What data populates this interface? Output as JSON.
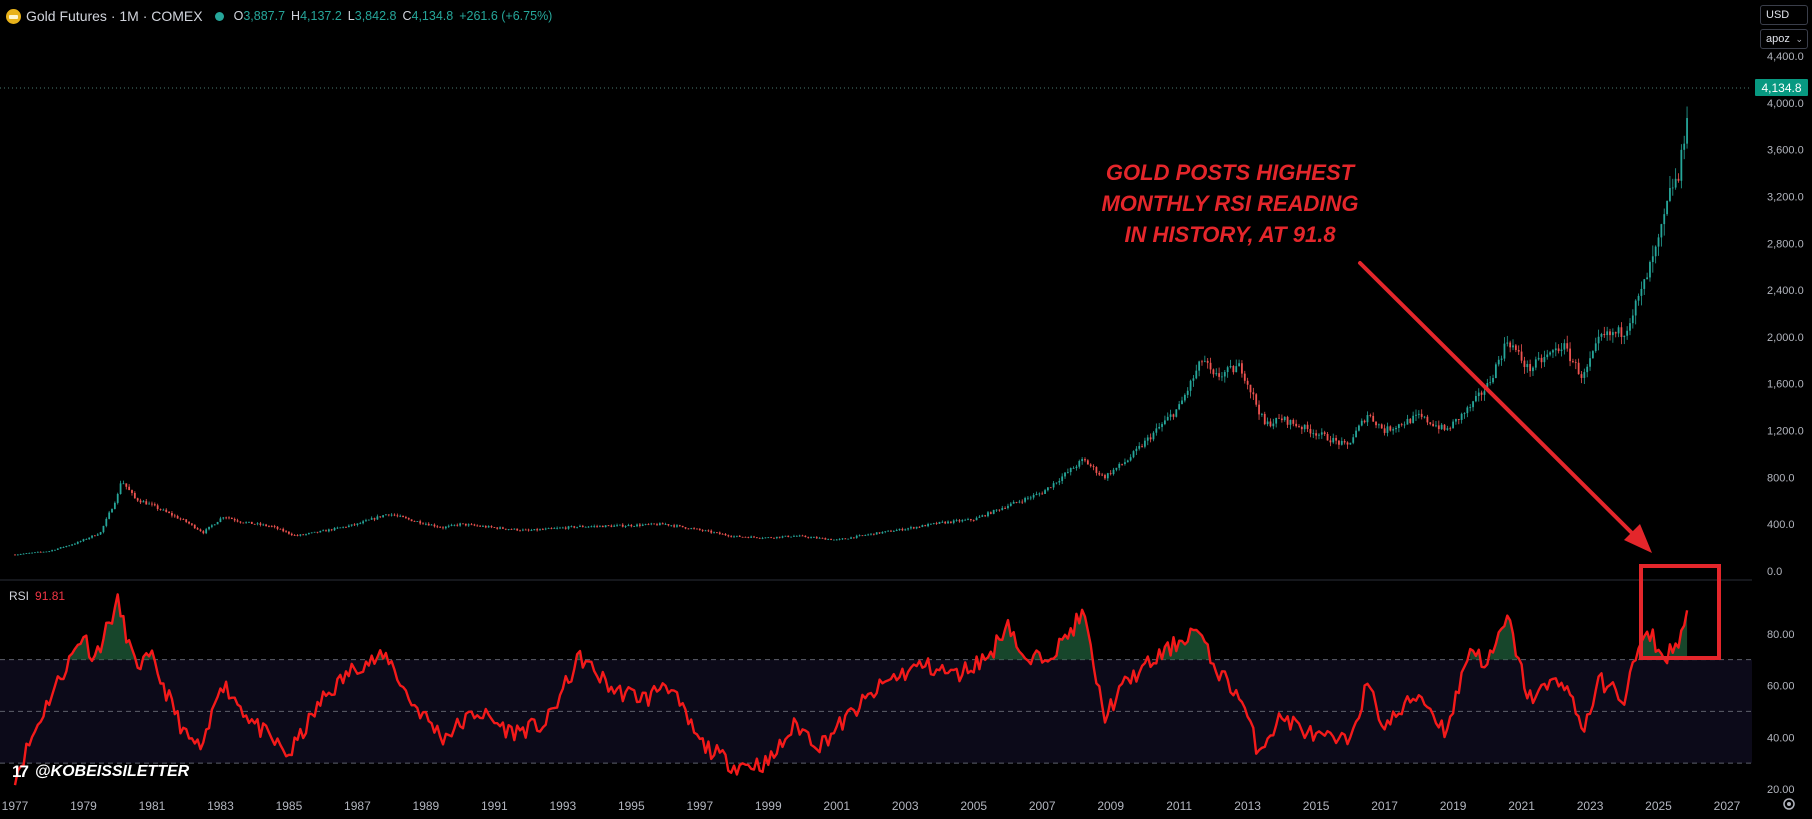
{
  "header": {
    "title": "Gold Futures · 1M · COMEX",
    "open_label": "O",
    "open": "3,887.7",
    "high_label": "H",
    "high": "4,137.2",
    "low_label": "L",
    "low": "3,842.8",
    "close_label": "C",
    "close": "4,134.8",
    "change": "+261.6 (+6.75%)"
  },
  "controls": {
    "currency": "USD",
    "scale": "apoz"
  },
  "current_price_tag": "4,134.8",
  "rsi_legend": {
    "label": "RSI",
    "value": "91.81"
  },
  "annotation": [
    "GOLD POSTS HIGHEST",
    "MONTHLY RSI READING",
    "IN HISTORY, AT 91.8"
  ],
  "watermark": "@KOBEISSILETTER",
  "colors": {
    "up": "#26a69a",
    "down": "#ef5350",
    "rsi_line": "#f41a1a",
    "annotation": "#e4262b",
    "price_tag": "#089981"
  },
  "icons": {
    "symbol": "gold-coin-icon",
    "status": "market-open-dot-icon",
    "logo": "tradingview-logo-icon",
    "settings": "gear-icon"
  },
  "chart_data": [
    {
      "type": "candlestick",
      "title": "Gold Futures · 1M · COMEX",
      "ylim": [
        0,
        4400
      ],
      "y_ticks": [
        "0.0",
        "400.0",
        "800.0",
        "1,200.0",
        "1,600.0",
        "2,000.0",
        "2,400.0",
        "2,800.0",
        "3,200.0",
        "3,600.0",
        "4,000.0",
        "4,400.0"
      ],
      "x_ticks": [
        "1977",
        "1979",
        "1981",
        "1983",
        "1985",
        "1987",
        "1989",
        "1991",
        "1993",
        "1995",
        "1997",
        "1999",
        "2001",
        "2003",
        "2005",
        "2007",
        "2009",
        "2011",
        "2013",
        "2015",
        "2017",
        "2019",
        "2021",
        "2023",
        "2025",
        "2027"
      ],
      "series": [
        {
          "approx_monthly_close_keypoints": [
            [
              1977.0,
              140
            ],
            [
              1978.0,
              170
            ],
            [
              1978.8,
              240
            ],
            [
              1979.5,
              330
            ],
            [
              1980.0,
              650
            ],
            [
              1980.1,
              780
            ],
            [
              1980.5,
              620
            ],
            [
              1981.0,
              560
            ],
            [
              1982.0,
              420
            ],
            [
              1982.5,
              330
            ],
            [
              1983.1,
              470
            ],
            [
              1983.6,
              420
            ],
            [
              1984.5,
              380
            ],
            [
              1985.2,
              300
            ],
            [
              1986.0,
              340
            ],
            [
              1987.0,
              400
            ],
            [
              1987.9,
              490
            ],
            [
              1988.5,
              440
            ],
            [
              1989.5,
              370
            ],
            [
              1990.0,
              400
            ],
            [
              1991.0,
              370
            ],
            [
              1992.0,
              345
            ],
            [
              1993.5,
              380
            ],
            [
              1994.5,
              385
            ],
            [
              1996.0,
              400
            ],
            [
              1997.0,
              350
            ],
            [
              1998.0,
              295
            ],
            [
              1999.0,
              285
            ],
            [
              1999.8,
              300
            ],
            [
              2001.0,
              265
            ],
            [
              2002.0,
              315
            ],
            [
              2003.0,
              360
            ],
            [
              2004.0,
              410
            ],
            [
              2005.0,
              440
            ],
            [
              2006.0,
              560
            ],
            [
              2007.0,
              670
            ],
            [
              2008.2,
              950
            ],
            [
              2008.8,
              800
            ],
            [
              2009.5,
              950
            ],
            [
              2010.0,
              1100
            ],
            [
              2011.0,
              1400
            ],
            [
              2011.7,
              1820
            ],
            [
              2012.0,
              1650
            ],
            [
              2012.8,
              1750
            ],
            [
              2013.5,
              1250
            ],
            [
              2014.0,
              1300
            ],
            [
              2015.0,
              1180
            ],
            [
              2015.9,
              1065
            ],
            [
              2016.5,
              1340
            ],
            [
              2017.0,
              1200
            ],
            [
              2018.0,
              1320
            ],
            [
              2018.8,
              1200
            ],
            [
              2019.5,
              1400
            ],
            [
              2020.0,
              1580
            ],
            [
              2020.6,
              1980
            ],
            [
              2021.2,
              1720
            ],
            [
              2022.2,
              1930
            ],
            [
              2022.8,
              1650
            ],
            [
              2023.3,
              1990
            ],
            [
              2024.0,
              2050
            ],
            [
              2024.5,
              2380
            ],
            [
              2025.0,
              2800
            ],
            [
              2025.4,
              3300
            ],
            [
              2025.6,
              3350
            ],
            [
              2025.8,
              3850
            ],
            [
              2025.9,
              4134.8
            ]
          ]
        }
      ]
    },
    {
      "type": "line",
      "title": "RSI",
      "ylim": [
        20,
        100
      ],
      "y_ticks": [
        "20.00",
        "40.00",
        "60.00",
        "80.00"
      ],
      "reference_lines": [
        30,
        50,
        70
      ],
      "series": [
        {
          "name": "RSI",
          "last_value": 91.81,
          "approx_keypoints": [
            [
              1977.0,
              25
            ],
            [
              1978.0,
              55
            ],
            [
              1979.0,
              80
            ],
            [
              1979.3,
              70
            ],
            [
              1980.0,
              92
            ],
            [
              1980.5,
              68
            ],
            [
              1981.0,
              70
            ],
            [
              1981.5,
              55
            ],
            [
              1982.0,
              40
            ],
            [
              1982.5,
              35
            ],
            [
              1983.0,
              62
            ],
            [
              1984.0,
              45
            ],
            [
              1985.0,
              33
            ],
            [
              1986.0,
              55
            ],
            [
              1987.0,
              68
            ],
            [
              1987.9,
              71
            ],
            [
              1988.5,
              55
            ],
            [
              1989.5,
              40
            ],
            [
              1990.5,
              50
            ],
            [
              1991.5,
              42
            ],
            [
              1992.5,
              45
            ],
            [
              1993.5,
              71
            ],
            [
              1994.5,
              58
            ],
            [
              1995.5,
              55
            ],
            [
              1996.0,
              62
            ],
            [
              1997.0,
              38
            ],
            [
              1998.0,
              29
            ],
            [
              1999.0,
              30
            ],
            [
              1999.8,
              45
            ],
            [
              2000.5,
              37
            ],
            [
              2001.5,
              50
            ],
            [
              2002.5,
              62
            ],
            [
              2003.5,
              68
            ],
            [
              2004.5,
              64
            ],
            [
              2005.5,
              72
            ],
            [
              2006.0,
              85
            ],
            [
              2006.5,
              68
            ],
            [
              2007.5,
              75
            ],
            [
              2008.2,
              88
            ],
            [
              2008.8,
              48
            ],
            [
              2009.5,
              62
            ],
            [
              2010.5,
              72
            ],
            [
              2011.5,
              82
            ],
            [
              2012.0,
              68
            ],
            [
              2012.8,
              55
            ],
            [
              2013.3,
              35
            ],
            [
              2014.0,
              48
            ],
            [
              2015.0,
              40
            ],
            [
              2015.9,
              38
            ],
            [
              2016.5,
              60
            ],
            [
              2017.0,
              44
            ],
            [
              2018.0,
              57
            ],
            [
              2018.8,
              42
            ],
            [
              2019.5,
              75
            ],
            [
              2020.0,
              68
            ],
            [
              2020.6,
              86
            ],
            [
              2021.2,
              55
            ],
            [
              2022.2,
              63
            ],
            [
              2022.8,
              43
            ],
            [
              2023.3,
              62
            ],
            [
              2024.0,
              55
            ],
            [
              2024.4,
              74
            ],
            [
              2024.8,
              80
            ],
            [
              2025.1,
              70
            ],
            [
              2025.5,
              75
            ],
            [
              2025.8,
              85
            ],
            [
              2025.9,
              91.81
            ]
          ]
        }
      ]
    }
  ]
}
